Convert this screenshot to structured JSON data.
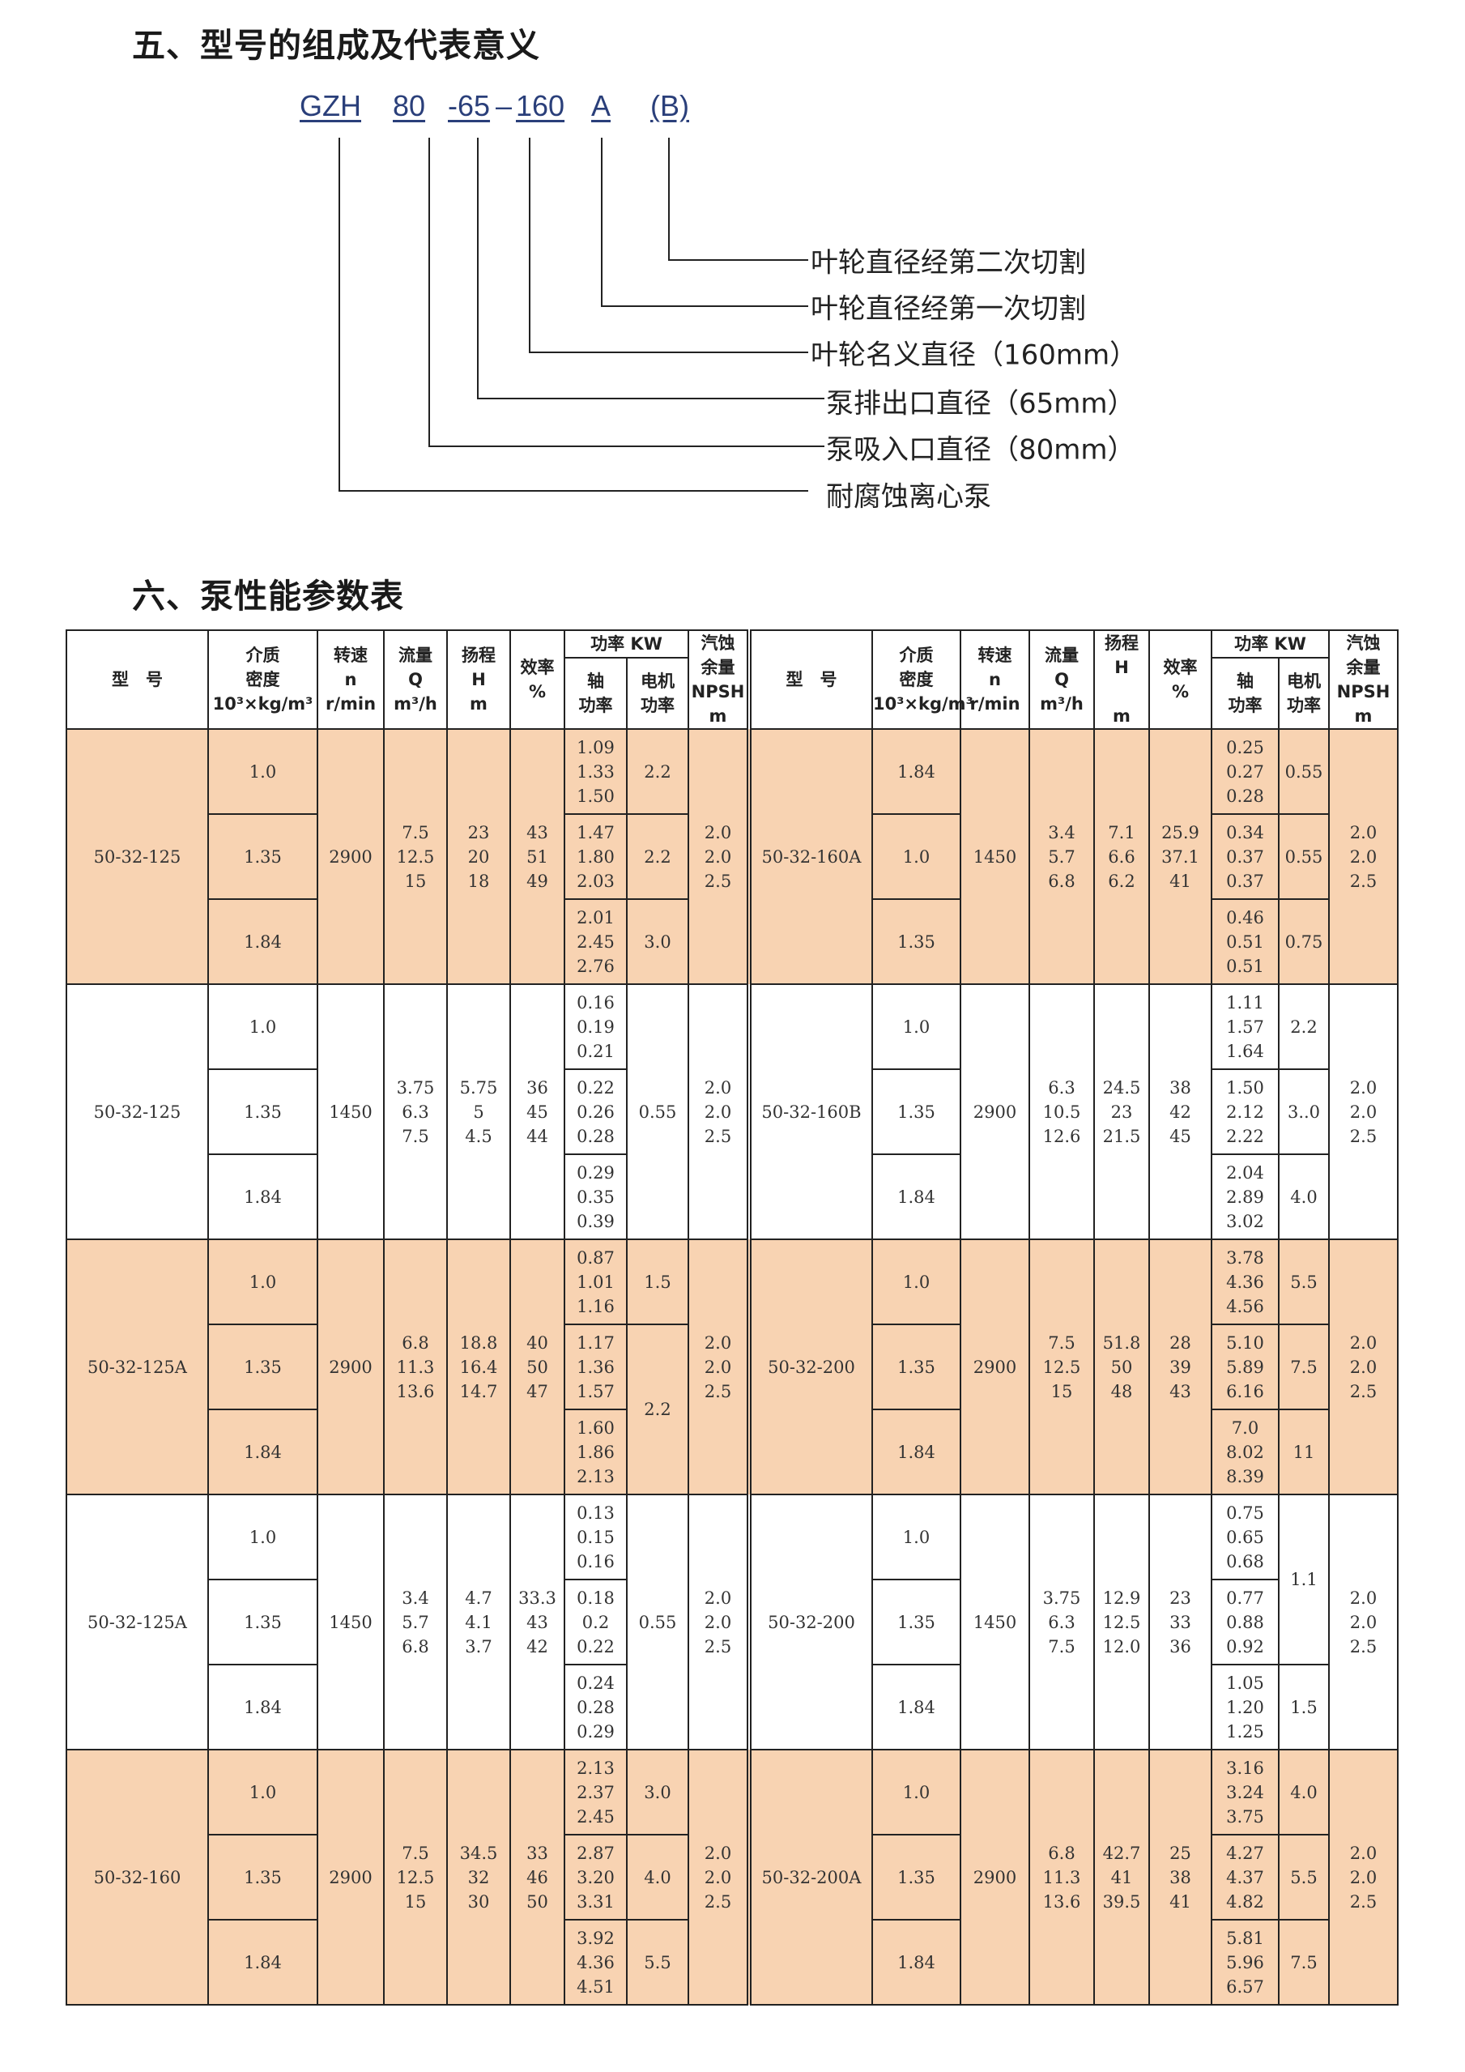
{
  "section5": {
    "title": "五、型号的组成及代表意义",
    "code_parts": [
      "GZH",
      "80",
      "-65",
      "–",
      "160",
      "A",
      "(B)"
    ],
    "labels": [
      "叶轮直径经第二次切割",
      "叶轮直径经第一次切割",
      "叶轮名义直径（160mm）",
      "泵排出口直径（65mm）",
      "泵吸入口直径（80mm）",
      "耐腐蚀离心泵"
    ]
  },
  "section6": {
    "title": "六、泵性能参数表"
  },
  "colors": {
    "band": "#f8d3b2",
    "border": "#222222",
    "code": "#2a3f7a"
  },
  "table": {
    "headers": {
      "model": "型　号",
      "density": "介质\n密度\n10³×kg/m³",
      "speed": "转速\nn\nr/min",
      "flow": "流量\nQ\nm³/h",
      "head_left": "扬程\nH\nm",
      "head_right": "扬程\nH\n\nm",
      "eff": "效率\n%",
      "power": "功率 KW",
      "shaft": "轴\n功率",
      "motor": "电机\n功率",
      "npsh": "汽蚀\n余量\nNPSH\nm"
    },
    "blocks": [
      {
        "left": {
          "model": "50-32-125",
          "densities": [
            "1.0",
            "1.35",
            "1.84"
          ],
          "speed": "2900",
          "flow": "7.5\n12.5\n15",
          "head": "23\n20\n18",
          "eff": "43\n51\n49",
          "shaft": [
            "1.09\n1.33\n1.50",
            "1.47\n1.80\n2.03",
            "2.01\n2.45\n2.76"
          ],
          "motor": [
            {
              "v": "2.2",
              "span": 1
            },
            {
              "v": "2.2",
              "span": 1
            },
            {
              "v": "3.0",
              "span": 1
            }
          ],
          "npsh": "2.0\n2.0\n2.5"
        },
        "right": {
          "model": "50-32-160A",
          "densities": [
            "1.84",
            "1.0",
            "1.35"
          ],
          "speed": "1450",
          "flow": "3.4\n5.7\n6.8",
          "head": "7.1\n6.6\n6.2",
          "eff": "25.9\n37.1\n41",
          "shaft": [
            "0.25\n0.27\n0.28",
            "0.34\n0.37\n0.37",
            "0.46\n0.51\n0.51"
          ],
          "motor": [
            {
              "v": "0.55",
              "span": 1
            },
            {
              "v": "0.55",
              "span": 1
            },
            {
              "v": "0.75",
              "span": 1
            }
          ],
          "npsh": "2.0\n2.0\n2.5"
        }
      },
      {
        "left": {
          "model": "50-32-125",
          "densities": [
            "1.0",
            "1.35",
            "1.84"
          ],
          "speed": "1450",
          "flow": "3.75\n6.3\n7.5",
          "head": "5.75\n5\n4.5",
          "eff": "36\n45\n44",
          "shaft": [
            "0.16\n0.19\n0.21",
            "0.22\n0.26\n0.28",
            "0.29\n0.35\n0.39"
          ],
          "motor": [
            {
              "v": "0.55",
              "span": 3
            }
          ],
          "npsh": "2.0\n2.0\n2.5"
        },
        "right": {
          "model": "50-32-160B",
          "densities": [
            "1.0",
            "1.35",
            "1.84"
          ],
          "speed": "2900",
          "flow": "6.3\n10.5\n12.6",
          "head": "24.5\n23\n21.5",
          "eff": "38\n42\n45",
          "shaft": [
            "1.11\n1.57\n1.64",
            "1.50\n2.12\n2.22",
            "2.04\n2.89\n3.02"
          ],
          "motor": [
            {
              "v": "2.2",
              "span": 1
            },
            {
              "v": "3..0",
              "span": 1
            },
            {
              "v": "4.0",
              "span": 1
            }
          ],
          "npsh": "2.0\n2.0\n2.5"
        }
      },
      {
        "left": {
          "model": "50-32-125A",
          "densities": [
            "1.0",
            "1.35",
            "1.84"
          ],
          "speed": "2900",
          "flow": "6.8\n11.3\n13.6",
          "head": "18.8\n16.4\n14.7",
          "eff": "40\n50\n47",
          "shaft": [
            "0.87\n1.01\n1.16",
            "1.17\n1.36\n1.57",
            "1.60\n1.86\n2.13"
          ],
          "motor": [
            {
              "v": "1.5",
              "span": 1
            },
            {
              "v": "2.2",
              "span": 2
            }
          ],
          "npsh": "2.0\n2.0\n2.5"
        },
        "right": {
          "model": "50-32-200",
          "densities": [
            "1.0",
            "1.35",
            "1.84"
          ],
          "speed": "2900",
          "flow": "7.5\n12.5\n15",
          "head": "51.8\n50\n48",
          "eff": "28\n39\n43",
          "shaft": [
            "3.78\n4.36\n4.56",
            "5.10\n5.89\n6.16",
            "7.0\n8.02\n8.39"
          ],
          "motor": [
            {
              "v": "5.5",
              "span": 1
            },
            {
              "v": "7.5",
              "span": 1
            },
            {
              "v": "11",
              "span": 1
            }
          ],
          "npsh": "2.0\n2.0\n2.5"
        }
      },
      {
        "left": {
          "model": "50-32-125A",
          "densities": [
            "1.0",
            "1.35",
            "1.84"
          ],
          "speed": "1450",
          "flow": "3.4\n5.7\n6.8",
          "head": "4.7\n4.1\n3.7",
          "eff": "33.3\n43\n42",
          "shaft": [
            "0.13\n0.15\n0.16",
            "0.18\n0.2\n0.22",
            "0.24\n0.28\n0.29"
          ],
          "motor": [
            {
              "v": "0.55",
              "span": 3
            }
          ],
          "npsh": "2.0\n2.0\n2.5"
        },
        "right": {
          "model": "50-32-200",
          "densities": [
            "1.0",
            "1.35",
            "1.84"
          ],
          "speed": "1450",
          "flow": "3.75\n6.3\n7.5",
          "head": "12.9\n12.5\n12.0",
          "eff": "23\n33\n36",
          "shaft": [
            "0.75\n0.65\n0.68",
            "0.77\n0.88\n0.92",
            "1.05\n1.20\n1.25"
          ],
          "motor": [
            {
              "v": "1.1",
              "span": 2
            },
            {
              "v": "1.5",
              "span": 1
            }
          ],
          "npsh": "2.0\n2.0\n2.5"
        }
      },
      {
        "left": {
          "model": "50-32-160",
          "densities": [
            "1.0",
            "1.35",
            "1.84"
          ],
          "speed": "2900",
          "flow": "7.5\n12.5\n15",
          "head": "34.5\n32\n30",
          "eff": "33\n46\n50",
          "shaft": [
            "2.13\n2.37\n2.45",
            "2.87\n3.20\n3.31",
            "3.92\n4.36\n4.51"
          ],
          "motor": [
            {
              "v": "3.0",
              "span": 1
            },
            {
              "v": "4.0",
              "span": 1
            },
            {
              "v": "5.5",
              "span": 1
            }
          ],
          "npsh": "2.0\n2.0\n2.5"
        },
        "right": {
          "model": "50-32-200A",
          "densities": [
            "1.0",
            "1.35",
            "1.84"
          ],
          "speed": "2900",
          "flow": "6.8\n11.3\n13.6",
          "head": "42.7\n41\n39.5",
          "eff": "25\n38\n41",
          "shaft": [
            "3.16\n3.24\n3.75",
            "4.27\n4.37\n4.82",
            "5.81\n5.96\n6.57"
          ],
          "motor": [
            {
              "v": "4.0",
              "span": 1
            },
            {
              "v": "5.5",
              "span": 1
            },
            {
              "v": "7.5",
              "span": 1
            }
          ],
          "npsh": "2.0\n2.0\n2.5"
        }
      }
    ]
  }
}
